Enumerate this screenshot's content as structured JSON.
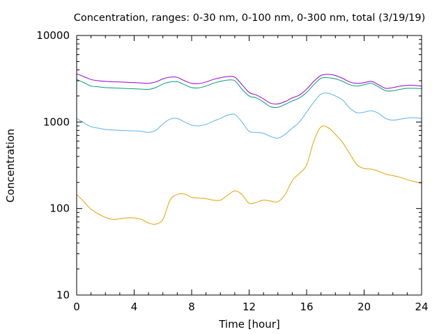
{
  "chart_data": {
    "type": "line",
    "title": "Concentration, ranges: 0-30 nm, 0-100 nm, 0-300 nm, total (3/19/19)",
    "xlabel": "Time [hour]",
    "ylabel": "Concentration",
    "xlim": [
      0,
      24
    ],
    "ylim": [
      10,
      10000
    ],
    "yscale": "log",
    "grid": false,
    "legend": "none",
    "x_ticks": [
      0,
      4,
      8,
      12,
      16,
      20,
      24
    ],
    "x_tick_labels": [
      "0",
      "4",
      "8",
      "12",
      "16",
      "20",
      "24"
    ],
    "y_ticks": [
      10,
      100,
      1000,
      10000
    ],
    "y_tick_labels": [
      "10",
      "100",
      "1000",
      "10000"
    ],
    "series": [
      {
        "color": "#e69f00",
        "x": [
          0,
          0.5,
          1,
          1.5,
          2,
          2.5,
          3,
          3.5,
          4,
          4.5,
          5,
          5.5,
          6,
          6.5,
          7,
          7.5,
          8,
          8.5,
          9,
          9.5,
          10,
          10.5,
          11,
          11.5,
          12,
          12.5,
          13,
          13.5,
          14,
          14.5,
          15,
          15.5,
          16,
          16.5,
          17,
          17.5,
          18,
          18.5,
          19,
          19.5,
          20,
          20.5,
          21,
          21.5,
          22,
          22.5,
          23,
          23.5,
          24
        ],
        "y": [
          145,
          120,
          98,
          87,
          79,
          75,
          76,
          78,
          78,
          75,
          68,
          66,
          75,
          125,
          145,
          147,
          135,
          132,
          130,
          125,
          125,
          142,
          160,
          145,
          115,
          118,
          125,
          122,
          120,
          145,
          210,
          255,
          320,
          600,
          880,
          860,
          720,
          580,
          430,
          320,
          290,
          285,
          270,
          250,
          240,
          230,
          215,
          205,
          195
        ]
      },
      {
        "color": "#56b4e9",
        "x": [
          0,
          0.5,
          1,
          1.5,
          2,
          2.5,
          3,
          3.5,
          4,
          4.5,
          5,
          5.5,
          6,
          6.5,
          7,
          7.5,
          8,
          8.5,
          9,
          9.5,
          10,
          10.5,
          11,
          11.5,
          12,
          12.5,
          13,
          13.5,
          14,
          14.5,
          15,
          15.5,
          16,
          16.5,
          17,
          17.5,
          18,
          18.5,
          19,
          19.5,
          20,
          20.5,
          21,
          21.5,
          22,
          22.5,
          23,
          23.5,
          24
        ],
        "y": [
          1100,
          980,
          880,
          850,
          820,
          810,
          800,
          795,
          790,
          780,
          760,
          800,
          950,
          1080,
          1100,
          1000,
          920,
          900,
          940,
          1020,
          1100,
          1200,
          1220,
          1000,
          780,
          760,
          740,
          680,
          650,
          720,
          850,
          1000,
          1300,
          1700,
          2100,
          2150,
          2000,
          1800,
          1450,
          1280,
          1300,
          1350,
          1260,
          1100,
          1050,
          1080,
          1110,
          1120,
          1100
        ]
      },
      {
        "color": "#009e73",
        "x": [
          0,
          0.5,
          1,
          1.5,
          2,
          2.5,
          3,
          3.5,
          4,
          4.5,
          5,
          5.5,
          6,
          6.5,
          7,
          7.5,
          8,
          8.5,
          9,
          9.5,
          10,
          10.5,
          11,
          11.5,
          12,
          12.5,
          13,
          13.5,
          14,
          14.5,
          15,
          15.5,
          16,
          16.5,
          17,
          17.5,
          18,
          18.5,
          19,
          19.5,
          20,
          20.5,
          21,
          21.5,
          22,
          22.5,
          23,
          23.5,
          24
        ],
        "y": [
          3100,
          2850,
          2600,
          2550,
          2500,
          2480,
          2460,
          2440,
          2420,
          2400,
          2380,
          2500,
          2750,
          2900,
          2920,
          2700,
          2500,
          2480,
          2600,
          2800,
          2950,
          3050,
          3000,
          2400,
          2000,
          1900,
          1700,
          1500,
          1480,
          1600,
          1750,
          1900,
          2200,
          2700,
          3200,
          3250,
          3150,
          2950,
          2700,
          2600,
          2700,
          2800,
          2550,
          2300,
          2300,
          2380,
          2450,
          2450,
          2430
        ]
      },
      {
        "color": "#9400d3",
        "x": [
          0,
          0.5,
          1,
          1.5,
          2,
          2.5,
          3,
          3.5,
          4,
          4.5,
          5,
          5.5,
          6,
          6.5,
          7,
          7.5,
          8,
          8.5,
          9,
          9.5,
          10,
          10.5,
          11,
          11.5,
          12,
          12.5,
          13,
          13.5,
          14,
          14.5,
          15,
          15.5,
          16,
          16.5,
          17,
          17.5,
          18,
          18.5,
          19,
          19.5,
          20,
          20.5,
          21,
          21.5,
          22,
          22.5,
          23,
          23.5,
          24
        ],
        "y": [
          3600,
          3350,
          3100,
          3000,
          2950,
          2920,
          2900,
          2880,
          2850,
          2830,
          2800,
          2900,
          3150,
          3300,
          3280,
          3000,
          2800,
          2780,
          2900,
          3100,
          3250,
          3350,
          3300,
          2700,
          2200,
          2050,
          1850,
          1650,
          1620,
          1720,
          1900,
          2050,
          2400,
          2950,
          3450,
          3550,
          3450,
          3200,
          2900,
          2800,
          2850,
          2950,
          2700,
          2450,
          2500,
          2600,
          2650,
          2650,
          2600
        ]
      }
    ]
  }
}
